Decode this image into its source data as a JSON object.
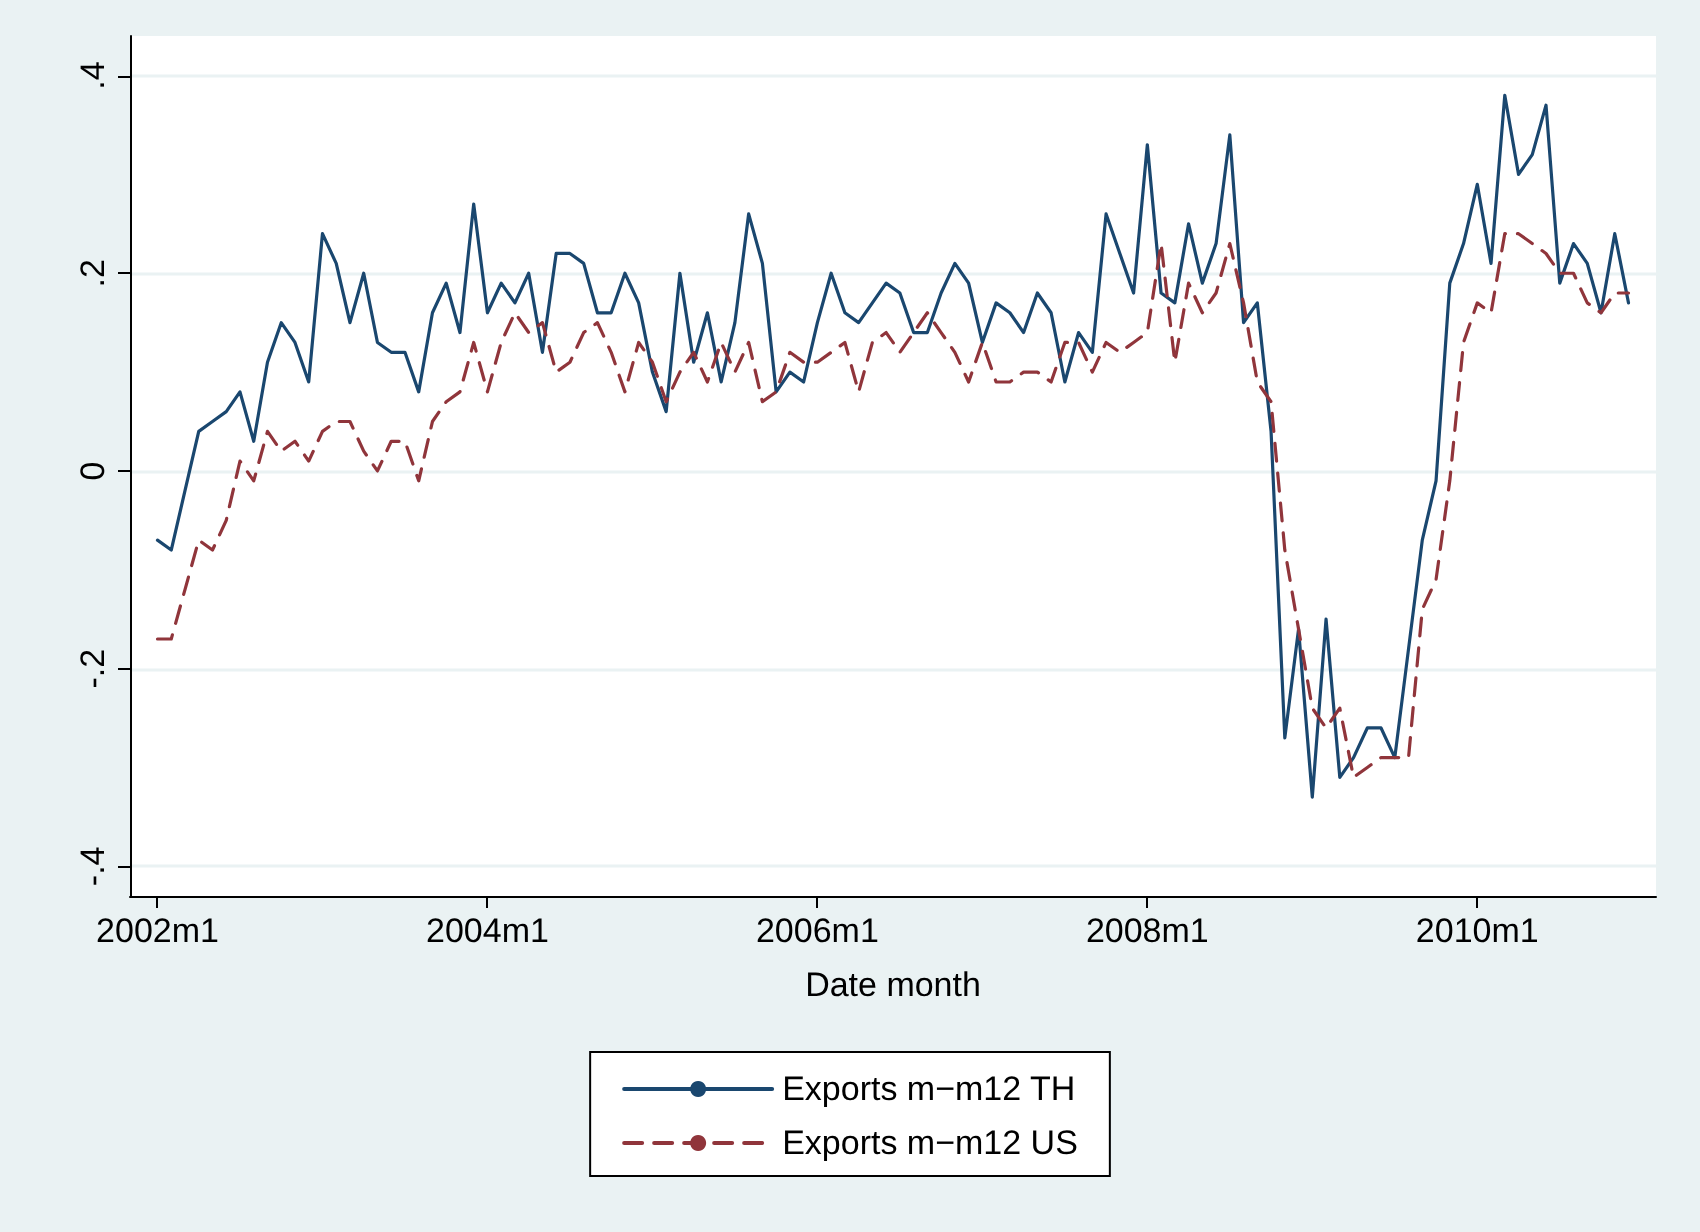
{
  "chart_data": {
    "type": "line",
    "xlabel": "Date month",
    "x": [
      "2002-01",
      "2002-02",
      "2002-03",
      "2002-04",
      "2002-05",
      "2002-06",
      "2002-07",
      "2002-08",
      "2002-09",
      "2002-10",
      "2002-11",
      "2002-12",
      "2003-01",
      "2003-02",
      "2003-03",
      "2003-04",
      "2003-05",
      "2003-06",
      "2003-07",
      "2003-08",
      "2003-09",
      "2003-10",
      "2003-11",
      "2003-12",
      "2004-01",
      "2004-02",
      "2004-03",
      "2004-04",
      "2004-05",
      "2004-06",
      "2004-07",
      "2004-08",
      "2004-09",
      "2004-10",
      "2004-11",
      "2004-12",
      "2005-01",
      "2005-02",
      "2005-03",
      "2005-04",
      "2005-05",
      "2005-06",
      "2005-07",
      "2005-08",
      "2005-09",
      "2005-10",
      "2005-11",
      "2005-12",
      "2006-01",
      "2006-02",
      "2006-03",
      "2006-04",
      "2006-05",
      "2006-06",
      "2006-07",
      "2006-08",
      "2006-09",
      "2006-10",
      "2006-11",
      "2006-12",
      "2007-01",
      "2007-02",
      "2007-03",
      "2007-04",
      "2007-05",
      "2007-06",
      "2007-07",
      "2007-08",
      "2007-09",
      "2007-10",
      "2007-11",
      "2007-12",
      "2008-01",
      "2008-02",
      "2008-03",
      "2008-04",
      "2008-05",
      "2008-06",
      "2008-07",
      "2008-08",
      "2008-09",
      "2008-10",
      "2008-11",
      "2008-12",
      "2009-01",
      "2009-02",
      "2009-03",
      "2009-04",
      "2009-05",
      "2009-06",
      "2009-07",
      "2009-08",
      "2009-09",
      "2009-10",
      "2009-11",
      "2009-12",
      "2010-01",
      "2010-02",
      "2010-03",
      "2010-04",
      "2010-05",
      "2010-06",
      "2010-07",
      "2010-08",
      "2010-09",
      "2010-10",
      "2010-11",
      "2010-12"
    ],
    "series": [
      {
        "name": "Exports m−m12 TH",
        "color": "#1a476f",
        "line_style": "solid",
        "values": [
          -0.07,
          -0.08,
          -0.02,
          0.04,
          0.05,
          0.06,
          0.08,
          0.03,
          0.11,
          0.15,
          0.13,
          0.09,
          0.24,
          0.21,
          0.15,
          0.2,
          0.13,
          0.12,
          0.12,
          0.08,
          0.16,
          0.19,
          0.14,
          0.27,
          0.16,
          0.19,
          0.17,
          0.2,
          0.12,
          0.22,
          0.22,
          0.21,
          0.16,
          0.16,
          0.2,
          0.17,
          0.1,
          0.06,
          0.2,
          0.11,
          0.16,
          0.09,
          0.15,
          0.26,
          0.21,
          0.08,
          0.1,
          0.09,
          0.15,
          0.2,
          0.16,
          0.15,
          0.17,
          0.19,
          0.18,
          0.14,
          0.14,
          0.18,
          0.21,
          0.19,
          0.13,
          0.17,
          0.16,
          0.14,
          0.18,
          0.16,
          0.09,
          0.14,
          0.12,
          0.26,
          0.22,
          0.18,
          0.33,
          0.18,
          0.17,
          0.25,
          0.19,
          0.23,
          0.34,
          0.15,
          0.17,
          0.04,
          -0.27,
          -0.16,
          -0.33,
          -0.15,
          -0.31,
          -0.29,
          -0.26,
          -0.26,
          -0.29,
          -0.18,
          -0.07,
          -0.01,
          0.19,
          0.23,
          0.29,
          0.21,
          0.38,
          0.3,
          0.32,
          0.37,
          0.19,
          0.23,
          0.21,
          0.16,
          0.24,
          0.17
        ]
      },
      {
        "name": "Exports m−m12 US",
        "color": "#90353b",
        "line_style": "dashed",
        "values": [
          -0.17,
          -0.17,
          -0.12,
          -0.07,
          -0.08,
          -0.05,
          0.01,
          -0.01,
          0.04,
          0.02,
          0.03,
          0.01,
          0.04,
          0.05,
          0.05,
          0.02,
          0.0,
          0.03,
          0.03,
          -0.01,
          0.05,
          0.07,
          0.08,
          0.13,
          0.08,
          0.13,
          0.16,
          0.14,
          0.15,
          0.1,
          0.11,
          0.14,
          0.15,
          0.12,
          0.08,
          0.13,
          0.11,
          0.07,
          0.1,
          0.12,
          0.09,
          0.13,
          0.1,
          0.13,
          0.07,
          0.08,
          0.12,
          0.11,
          0.11,
          0.12,
          0.13,
          0.08,
          0.13,
          0.14,
          0.12,
          0.14,
          0.16,
          0.14,
          0.12,
          0.09,
          0.13,
          0.09,
          0.09,
          0.1,
          0.1,
          0.09,
          0.13,
          0.13,
          0.1,
          0.13,
          0.12,
          0.13,
          0.14,
          0.23,
          0.11,
          0.19,
          0.16,
          0.18,
          0.23,
          0.17,
          0.09,
          0.07,
          -0.08,
          -0.16,
          -0.24,
          -0.26,
          -0.24,
          -0.31,
          -0.3,
          -0.29,
          -0.29,
          -0.29,
          -0.14,
          -0.11,
          -0.01,
          0.13,
          0.17,
          0.16,
          0.24,
          0.24,
          0.23,
          0.22,
          0.2,
          0.2,
          0.17,
          0.16,
          0.18,
          0.18
        ]
      }
    ],
    "xlim": [
      "2001-11",
      "2011-02"
    ],
    "xticks": [
      {
        "value": "2002-01",
        "label": "2002m1"
      },
      {
        "value": "2004-01",
        "label": "2004m1"
      },
      {
        "value": "2006-01",
        "label": "2006m1"
      },
      {
        "value": "2008-01",
        "label": "2008m1"
      },
      {
        "value": "2010-01",
        "label": "2010m1"
      }
    ],
    "ylim": [
      -0.43,
      0.44
    ],
    "yticks": [
      {
        "value": -0.4,
        "label": "-.4"
      },
      {
        "value": -0.2,
        "label": "-.2"
      },
      0,
      {
        "value": 0.2,
        "label": ".2"
      },
      {
        "value": 0.4,
        "label": ".4"
      }
    ],
    "grid": "y",
    "legend": "bottom",
    "marker": "none"
  }
}
